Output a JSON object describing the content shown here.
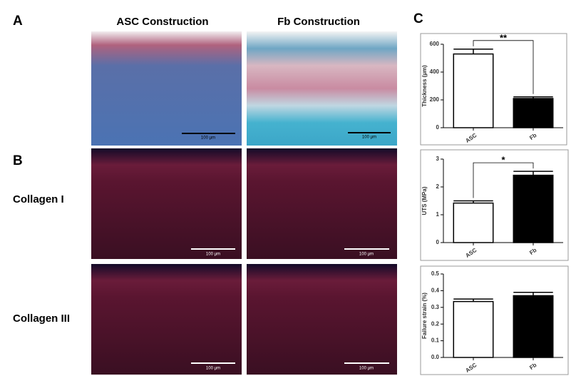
{
  "panel_labels": [
    "A",
    "B",
    "C"
  ],
  "column_headers": [
    "ASC Construction",
    "Fb Construction"
  ],
  "row_labels": [
    "Collagen I",
    "Collagen III"
  ],
  "scale_bar_labels": [
    "100 µm",
    "100 µm",
    "100 µm",
    "100 µm",
    "100 µm",
    "100 µm"
  ],
  "chart_data": [
    {
      "type": "bar",
      "y_label": "Thickness (µm)",
      "categories": [
        "ASC",
        "Fb"
      ],
      "values": [
        530,
        210
      ],
      "errors": [
        35,
        12
      ],
      "colors": [
        "#ffffff",
        "#000000"
      ],
      "ylim": [
        0,
        600
      ],
      "yticks": [
        0,
        200,
        400,
        600
      ],
      "annotation": "**"
    },
    {
      "type": "bar",
      "y_label": "UTS (MPa)",
      "categories": [
        "ASC",
        "Fb"
      ],
      "values": [
        1.42,
        2.42
      ],
      "errors": [
        0.08,
        0.14
      ],
      "colors": [
        "#ffffff",
        "#000000"
      ],
      "ylim": [
        0,
        3
      ],
      "yticks": [
        0,
        1,
        2,
        3
      ],
      "annotation": "*"
    },
    {
      "type": "bar",
      "y_label": "Failure strain (%)",
      "categories": [
        "ASC",
        "Fb"
      ],
      "values": [
        0.335,
        0.37
      ],
      "errors": [
        0.015,
        0.02
      ],
      "colors": [
        "#ffffff",
        "#000000"
      ],
      "ylim": [
        0,
        0.5
      ],
      "yticks": [
        {
          "value": 0,
          "label": "0.0"
        },
        0.1,
        0.2,
        0.3,
        0.4,
        0.5
      ]
    }
  ]
}
